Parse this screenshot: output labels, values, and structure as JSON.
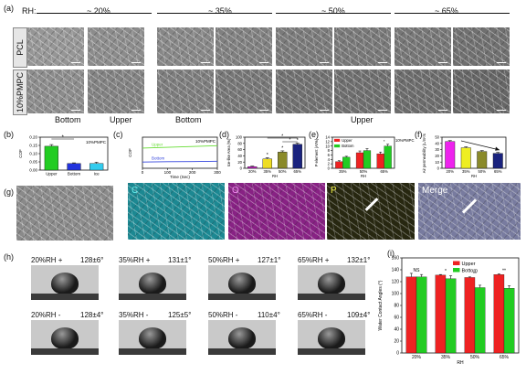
{
  "panel_labels": {
    "a": "(a)",
    "b": "(b)",
    "c": "(c)",
    "d": "(d)",
    "e": "(e)",
    "f": "(f)",
    "g": "(g)",
    "h": "(h)",
    "i": "(i)"
  },
  "panel_a": {
    "rh_label": "RH:",
    "rh_groups": [
      "~ 20%",
      "~ 35%",
      "~ 50%",
      "~ 65%"
    ],
    "row_labels": [
      "PCL",
      "10%PMPC"
    ],
    "col_labels": [
      "Bottom",
      "Upper",
      "Bottom",
      "Upper"
    ]
  },
  "panel_g": {
    "channel_labels": [
      "C",
      "O",
      "P",
      "Merge"
    ],
    "channel_colors": [
      "#26b7c4",
      "#b02aa8",
      "#c8c83a",
      "#9aa3d8"
    ]
  },
  "panel_h": {
    "rows": [
      [
        {
          "label": "20%RH +",
          "angle": "128±6°"
        },
        {
          "label": "35%RH +",
          "angle": "131±1°"
        },
        {
          "label": "50%RH +",
          "angle": "127±1°"
        },
        {
          "label": "65%RH +",
          "angle": "132±1°"
        }
      ],
      [
        {
          "label": "20%RH -",
          "angle": "128±4°"
        },
        {
          "label": "35%RH -",
          "angle": "125±5°"
        },
        {
          "label": "50%RH -",
          "angle": "110±4°"
        },
        {
          "label": "65%RH -",
          "angle": "109±4°"
        }
      ]
    ]
  },
  "chart_data": [
    {
      "panel": "b",
      "type": "bar",
      "annotation": "10%PMPC",
      "ylabel": "COF",
      "categories": [
        "Upper",
        "Bottom",
        "Ice"
      ],
      "values": [
        0.145,
        0.04,
        0.04
      ],
      "errors": [
        0.01,
        0.004,
        0.008
      ],
      "colors": [
        "#22cc22",
        "#2233dd",
        "#33ccee"
      ],
      "ylim": [
        0,
        0.2
      ],
      "yticks": [
        "0.00",
        "0.05",
        "0.10",
        "0.15",
        "0.20"
      ],
      "significance": [
        {
          "between": [
            "Upper",
            "Bottom"
          ],
          "label": "*"
        }
      ]
    },
    {
      "panel": "c",
      "type": "line",
      "annotation": "10%PMPC",
      "ylabel": "COF",
      "xlabel": "Time (Sec)",
      "xlim": [
        0,
        300
      ],
      "xticks": [
        "0",
        "100",
        "200",
        "300"
      ],
      "series": [
        {
          "name": "Upper",
          "color": "#66dd33",
          "x": [
            0,
            100,
            200,
            300
          ],
          "y": [
            0.13,
            0.135,
            0.14,
            0.145
          ]
        },
        {
          "name": "Bottom",
          "color": "#3344dd",
          "x": [
            0,
            100,
            200,
            300
          ],
          "y": [
            0.04,
            0.042,
            0.043,
            0.045
          ]
        }
      ]
    },
    {
      "panel": "d",
      "type": "bar",
      "ylabel": "Ice-like Area (%)",
      "xlabel": "RH",
      "categories": [
        "20%",
        "35%",
        "50%",
        "65%"
      ],
      "values": [
        5,
        30,
        52,
        77
      ],
      "errors": [
        2,
        4,
        4,
        4
      ],
      "colors": [
        "#cc22cc",
        "#eedd22",
        "#8a8a2a",
        "#1a237e"
      ],
      "ylim": [
        0,
        100
      ],
      "yticks": [
        "0",
        "20",
        "40",
        "60",
        "80",
        "100"
      ],
      "point_labels": [
        "",
        "*",
        "*",
        "*"
      ],
      "significance": [
        {
          "between": [
            "35%",
            "65%"
          ],
          "label": "*"
        },
        {
          "between": [
            "50%",
            "65%"
          ],
          "label": "*"
        }
      ]
    },
    {
      "panel": "e",
      "type": "bar",
      "annotation": "10%PMPC",
      "ylabel": "P element (At%)",
      "xlabel": "RH",
      "categories": [
        "35%",
        "50%",
        "65%"
      ],
      "series": [
        {
          "name": "Upper",
          "color": "#ee2222",
          "values": [
            3,
            7,
            6.5
          ],
          "errors": [
            0.4,
            0.8,
            0.8
          ]
        },
        {
          "name": "Bottom",
          "color": "#22cc22",
          "values": [
            5,
            8,
            10
          ],
          "errors": [
            0.4,
            0.8,
            0.8
          ]
        }
      ],
      "ylim": [
        0,
        14
      ],
      "yticks": [
        "0",
        "2",
        "4",
        "6",
        "8",
        "10",
        "12",
        "14"
      ],
      "point_labels": [
        "",
        "",
        "*"
      ]
    },
    {
      "panel": "f",
      "type": "bar",
      "ylabel": "Air permeability (L/m²/s)",
      "xlabel": "RH",
      "categories": [
        "20%",
        "35%",
        "50%",
        "65%"
      ],
      "values": [
        43,
        33,
        27,
        24
      ],
      "errors": [
        1.5,
        1.5,
        1.5,
        1.5
      ],
      "colors": [
        "#ee22ee",
        "#eeee22",
        "#8a8a2a",
        "#1a237e"
      ],
      "ylim": [
        0,
        50
      ],
      "yticks": [
        "0",
        "10",
        "20",
        "30",
        "40",
        "50"
      ]
    },
    {
      "panel": "i",
      "type": "bar",
      "ylabel": "Water Contact Angles (°)",
      "xlabel": "RH",
      "categories": [
        "20%",
        "35%",
        "50%",
        "65%"
      ],
      "series": [
        {
          "name": "Upper",
          "color": "#ee2222",
          "values": [
            128,
            131,
            127,
            132
          ],
          "errors": [
            6,
            1,
            1,
            1
          ]
        },
        {
          "name": "Bottom",
          "color": "#22cc22",
          "values": [
            128,
            125,
            110,
            109
          ],
          "errors": [
            4,
            5,
            4,
            4
          ]
        }
      ],
      "ylim": [
        0,
        160
      ],
      "yticks": [
        "0",
        "20",
        "40",
        "60",
        "80",
        "100",
        "120",
        "140",
        "160"
      ],
      "point_labels": [
        "NS",
        "*",
        "**",
        "**"
      ]
    }
  ]
}
